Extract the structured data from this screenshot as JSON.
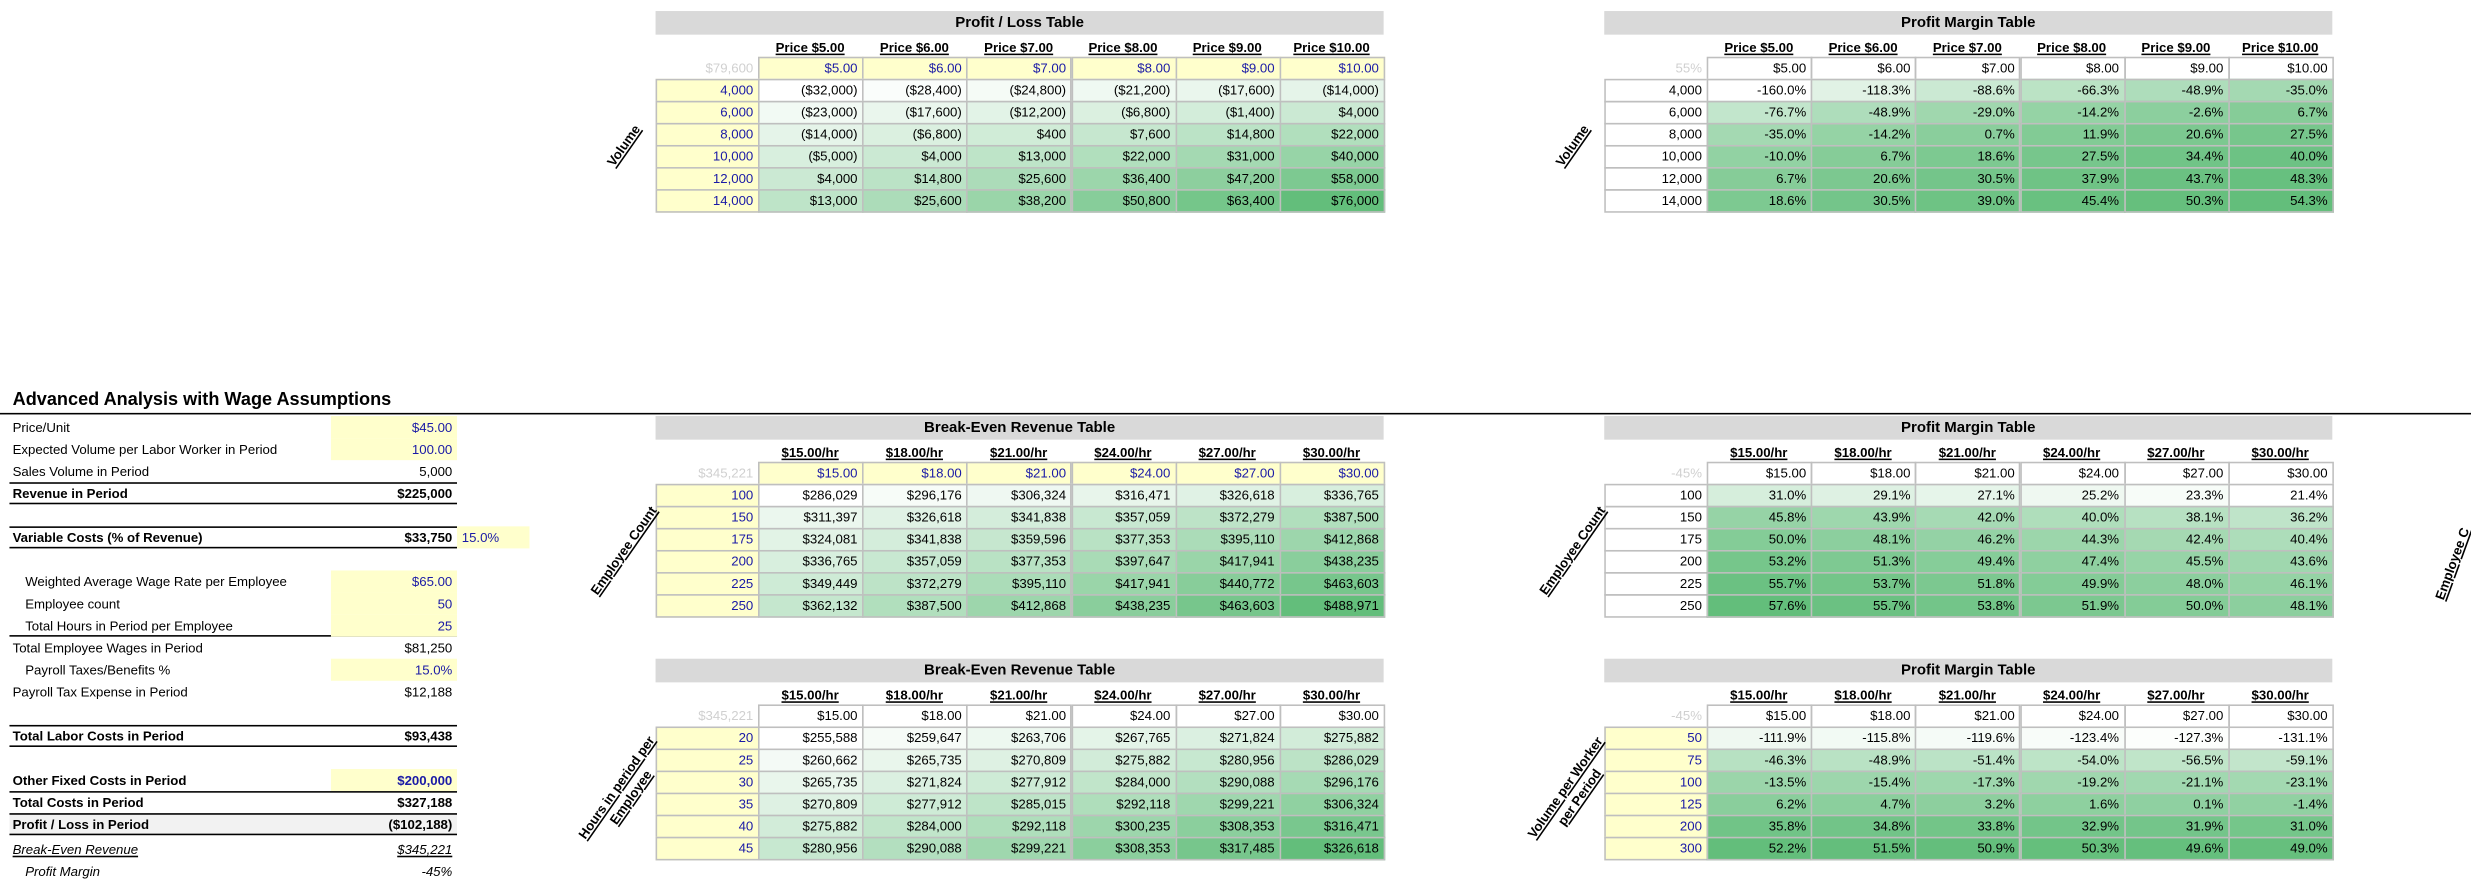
{
  "sheet": {
    "section_title": "Advanced Analysis with Wage Assumptions",
    "edge_label": "Employee C",
    "scale_colors": [
      "#ffffff",
      "#63be7b"
    ],
    "panel": [
      {
        "label": "Price/Unit",
        "value": "$45.00"
      },
      {
        "label": "Expected Volume per Labor Worker in Period",
        "value": "100.00"
      },
      {
        "label": "Sales Volume in Period",
        "value": "5,000"
      },
      {
        "label": "Revenue in Period",
        "value": "$225,000"
      },
      {
        "label": "Variable Costs (% of Revenue)",
        "value": "$33,750",
        "extra": "15.0%"
      },
      {
        "label": "Weighted Average Wage Rate per Employee",
        "value": "$65.00"
      },
      {
        "label": "Employee count",
        "value": "50"
      },
      {
        "label": "Total Hours in Period per Employee",
        "value": "25"
      },
      {
        "label": "Total Employee Wages in Period",
        "value": "$81,250"
      },
      {
        "label": "Payroll Taxes/Benefits %",
        "value": "15.0%"
      },
      {
        "label": "Payroll Tax Expense in Period",
        "value": "$12,188"
      },
      {
        "label": "Total Labor Costs in Period",
        "value": "$93,438"
      },
      {
        "label": "Other Fixed Costs in Period",
        "value": "$200,000"
      },
      {
        "label": "Total Costs in Period",
        "value": "$327,188"
      },
      {
        "label": "Profit / Loss in Period",
        "value": "($102,188)"
      },
      {
        "label": "Break-Even Revenue",
        "value": "$345,221"
      },
      {
        "label": "Profit Margin",
        "value": "-45%"
      }
    ],
    "tables": [
      {
        "title": "Profit / Loss Table",
        "axis_label": [
          "Volume"
        ],
        "corner": "$79,600",
        "input_top": true,
        "input_rows": true,
        "headers": [
          "Price $5.00",
          "Price $6.00",
          "Price $7.00",
          "Price $8.00",
          "Price $9.00",
          "Price $10.00"
        ],
        "top_row": [
          "$5.00",
          "$6.00",
          "$7.00",
          "$8.00",
          "$9.00",
          "$10.00"
        ],
        "row_labels": [
          "4,000",
          "6,000",
          "8,000",
          "10,000",
          "12,000",
          "14,000"
        ],
        "rows": [
          [
            "($32,000)",
            "($28,400)",
            "($24,800)",
            "($21,200)",
            "($17,600)",
            "($14,000)"
          ],
          [
            "($23,000)",
            "($17,600)",
            "($12,200)",
            "($6,800)",
            "($1,400)",
            "$4,000"
          ],
          [
            "($14,000)",
            "($6,800)",
            "$400",
            "$7,600",
            "$14,800",
            "$22,000"
          ],
          [
            "($5,000)",
            "$4,000",
            "$13,000",
            "$22,000",
            "$31,000",
            "$40,000"
          ],
          [
            "$4,000",
            "$14,800",
            "$25,600",
            "$36,400",
            "$47,200",
            "$58,000"
          ],
          [
            "$13,000",
            "$25,600",
            "$38,200",
            "$50,800",
            "$63,400",
            "$76,000"
          ]
        ]
      },
      {
        "title": "Profit Margin Table",
        "axis_label": [
          "Volume"
        ],
        "corner": "55%",
        "input_top": false,
        "input_rows": false,
        "headers": [
          "Price $5.00",
          "Price $6.00",
          "Price $7.00",
          "Price $8.00",
          "Price $9.00",
          "Price $10.00"
        ],
        "top_row": [
          "$5.00",
          "$6.00",
          "$7.00",
          "$8.00",
          "$9.00",
          "$10.00"
        ],
        "row_labels": [
          "4,000",
          "6,000",
          "8,000",
          "10,000",
          "12,000",
          "14,000"
        ],
        "rows": [
          [
            "-160.0%",
            "-118.3%",
            "-88.6%",
            "-66.3%",
            "-48.9%",
            "-35.0%"
          ],
          [
            "-76.7%",
            "-48.9%",
            "-29.0%",
            "-14.2%",
            "-2.6%",
            "6.7%"
          ],
          [
            "-35.0%",
            "-14.2%",
            "0.7%",
            "11.9%",
            "20.6%",
            "27.5%"
          ],
          [
            "-10.0%",
            "6.7%",
            "18.6%",
            "27.5%",
            "34.4%",
            "40.0%"
          ],
          [
            "6.7%",
            "20.6%",
            "30.5%",
            "37.9%",
            "43.7%",
            "48.3%"
          ],
          [
            "18.6%",
            "30.5%",
            "39.0%",
            "45.4%",
            "50.3%",
            "54.3%"
          ]
        ]
      },
      {
        "title": "Break-Even Revenue Table",
        "axis_label": [
          "Employee Count"
        ],
        "corner": "$345,221",
        "input_top": true,
        "input_rows": true,
        "headers": [
          "$15.00/hr",
          "$18.00/hr",
          "$21.00/hr",
          "$24.00/hr",
          "$27.00/hr",
          "$30.00/hr"
        ],
        "top_row": [
          "$15.00",
          "$18.00",
          "$21.00",
          "$24.00",
          "$27.00",
          "$30.00"
        ],
        "row_labels": [
          "100",
          "150",
          "175",
          "200",
          "225",
          "250"
        ],
        "rows": [
          [
            "$286,029",
            "$296,176",
            "$306,324",
            "$316,471",
            "$326,618",
            "$336,765"
          ],
          [
            "$311,397",
            "$326,618",
            "$341,838",
            "$357,059",
            "$372,279",
            "$387,500"
          ],
          [
            "$324,081",
            "$341,838",
            "$359,596",
            "$377,353",
            "$395,110",
            "$412,868"
          ],
          [
            "$336,765",
            "$357,059",
            "$377,353",
            "$397,647",
            "$417,941",
            "$438,235"
          ],
          [
            "$349,449",
            "$372,279",
            "$395,110",
            "$417,941",
            "$440,772",
            "$463,603"
          ],
          [
            "$362,132",
            "$387,500",
            "$412,868",
            "$438,235",
            "$463,603",
            "$488,971"
          ]
        ]
      },
      {
        "title": "Profit Margin Table",
        "axis_label": [
          "Employee Count"
        ],
        "corner": "-45%",
        "input_top": false,
        "input_rows": false,
        "headers": [
          "$15.00/hr",
          "$18.00/hr",
          "$21.00/hr",
          "$24.00/hr",
          "$27.00/hr",
          "$30.00/hr"
        ],
        "top_row": [
          "$15.00",
          "$18.00",
          "$21.00",
          "$24.00",
          "$27.00",
          "$30.00"
        ],
        "row_labels": [
          "100",
          "150",
          "175",
          "200",
          "225",
          "250"
        ],
        "rows": [
          [
            "31.0%",
            "29.1%",
            "27.1%",
            "25.2%",
            "23.3%",
            "21.4%"
          ],
          [
            "45.8%",
            "43.9%",
            "42.0%",
            "40.0%",
            "38.1%",
            "36.2%"
          ],
          [
            "50.0%",
            "48.1%",
            "46.2%",
            "44.3%",
            "42.4%",
            "40.4%"
          ],
          [
            "53.2%",
            "51.3%",
            "49.4%",
            "47.4%",
            "45.5%",
            "43.6%"
          ],
          [
            "55.7%",
            "53.7%",
            "51.8%",
            "49.9%",
            "48.0%",
            "46.1%"
          ],
          [
            "57.6%",
            "55.7%",
            "53.8%",
            "51.9%",
            "50.0%",
            "48.1%"
          ]
        ]
      },
      {
        "title": "Break-Even Revenue Table",
        "axis_label": [
          "Hours in period per",
          "Employee"
        ],
        "corner": "$345,221",
        "input_top": false,
        "input_rows": true,
        "headers": [
          "$15.00/hr",
          "$18.00/hr",
          "$21.00/hr",
          "$24.00/hr",
          "$27.00/hr",
          "$30.00/hr"
        ],
        "top_row": [
          "$15.00",
          "$18.00",
          "$21.00",
          "$24.00",
          "$27.00",
          "$30.00"
        ],
        "row_labels": [
          "20",
          "25",
          "30",
          "35",
          "40",
          "45"
        ],
        "rows": [
          [
            "$255,588",
            "$259,647",
            "$263,706",
            "$267,765",
            "$271,824",
            "$275,882"
          ],
          [
            "$260,662",
            "$265,735",
            "$270,809",
            "$275,882",
            "$280,956",
            "$286,029"
          ],
          [
            "$265,735",
            "$271,824",
            "$277,912",
            "$284,000",
            "$290,088",
            "$296,176"
          ],
          [
            "$270,809",
            "$277,912",
            "$285,015",
            "$292,118",
            "$299,221",
            "$306,324"
          ],
          [
            "$275,882",
            "$284,000",
            "$292,118",
            "$300,235",
            "$308,353",
            "$316,471"
          ],
          [
            "$280,956",
            "$290,088",
            "$299,221",
            "$308,353",
            "$317,485",
            "$326,618"
          ]
        ]
      },
      {
        "title": "Profit Margin Table",
        "axis_label": [
          "Volume per Worker",
          "per Period"
        ],
        "corner": "-45%",
        "input_top": false,
        "input_rows": true,
        "headers": [
          "$15.00/hr",
          "$18.00/hr",
          "$21.00/hr",
          "$24.00/hr",
          "$27.00/hr",
          "$30.00/hr"
        ],
        "top_row": [
          "$15.00",
          "$18.00",
          "$21.00",
          "$24.00",
          "$27.00",
          "$30.00"
        ],
        "row_labels": [
          "50",
          "75",
          "100",
          "125",
          "200",
          "300"
        ],
        "rows": [
          [
            "-111.9%",
            "-115.8%",
            "-119.6%",
            "-123.4%",
            "-127.3%",
            "-131.1%"
          ],
          [
            "-46.3%",
            "-48.9%",
            "-51.4%",
            "-54.0%",
            "-56.5%",
            "-59.1%"
          ],
          [
            "-13.5%",
            "-15.4%",
            "-17.3%",
            "-19.2%",
            "-21.1%",
            "-23.1%"
          ],
          [
            "6.2%",
            "4.7%",
            "3.2%",
            "1.6%",
            "0.1%",
            "-1.4%"
          ],
          [
            "35.8%",
            "34.8%",
            "33.8%",
            "32.9%",
            "31.9%",
            "31.0%"
          ],
          [
            "52.2%",
            "51.5%",
            "50.9%",
            "50.3%",
            "49.6%",
            "49.0%"
          ]
        ]
      }
    ]
  }
}
